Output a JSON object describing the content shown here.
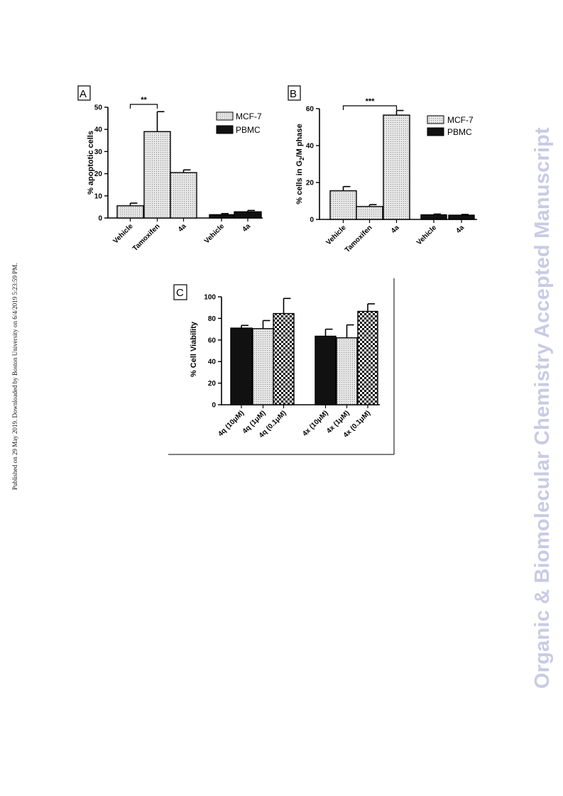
{
  "side_note": "Published on 29 May 2019. Downloaded by Boston University on 6/4/2019 5:23:59 PM.",
  "watermark": "Organic & Biomolecular Chemistry Accepted Manuscript",
  "colors": {
    "mcf7_fill": "#dcdcdc",
    "pbmc_fill": "#111111",
    "axis": "#000000",
    "watermark": "#c9cbe4"
  },
  "chart_data": [
    {
      "panel": "A",
      "type": "bar",
      "ylabel": "% apoptotic cells",
      "ylim": [
        0,
        50
      ],
      "yticks": [
        0,
        10,
        20,
        30,
        40,
        50
      ],
      "categories": [
        "Vehicle",
        "Tamoxifen",
        "4a",
        "Vehicle",
        "4a"
      ],
      "legend": [
        "MCF-7",
        "PBMC"
      ],
      "legend_position": "top-right",
      "bars": [
        {
          "category": "Vehicle",
          "series": "MCF-7",
          "value": 5.5,
          "error": 1.2,
          "fill": "dots"
        },
        {
          "category": "Tamoxifen",
          "series": "MCF-7",
          "value": 39,
          "error": 9,
          "fill": "dots"
        },
        {
          "category": "4a",
          "series": "MCF-7",
          "value": 20.5,
          "error": 1.2,
          "fill": "dots"
        },
        {
          "category": "Vehicle",
          "series": "PBMC",
          "value": 1.5,
          "error": 0.5,
          "fill": "solid"
        },
        {
          "category": "4a",
          "series": "PBMC",
          "value": 2.8,
          "error": 0.6,
          "fill": "solid"
        }
      ],
      "significance": [
        {
          "from": 0,
          "to": 1,
          "label": "**"
        }
      ]
    },
    {
      "panel": "B",
      "type": "bar",
      "ylabel_parts": [
        "% cells in G",
        "2",
        "/M phase"
      ],
      "ylim": [
        0,
        60
      ],
      "yticks": [
        0,
        20,
        40,
        60
      ],
      "categories": [
        "Vehicle",
        "Tamoxifen",
        "4a",
        "Vehicle",
        "4a"
      ],
      "legend": [
        "MCF-7",
        "PBMC"
      ],
      "legend_position": "top-right",
      "bars": [
        {
          "category": "Vehicle",
          "series": "MCF-7",
          "value": 15.5,
          "error": 2.3,
          "fill": "dots"
        },
        {
          "category": "Tamoxifen",
          "series": "MCF-7",
          "value": 7,
          "error": 1,
          "fill": "dots"
        },
        {
          "category": "4a",
          "series": "MCF-7",
          "value": 56.5,
          "error": 2.5,
          "fill": "dots"
        },
        {
          "category": "Vehicle",
          "series": "PBMC",
          "value": 2.5,
          "error": 0.4,
          "fill": "solid"
        },
        {
          "category": "4a",
          "series": "PBMC",
          "value": 2.3,
          "error": 0.4,
          "fill": "solid"
        }
      ],
      "significance": [
        {
          "from": 0,
          "to": 2,
          "label": "***"
        }
      ]
    },
    {
      "panel": "C",
      "type": "bar",
      "ylabel": "% Cell Viability",
      "ylim": [
        0,
        100
      ],
      "yticks": [
        0,
        20,
        40,
        60,
        80,
        100
      ],
      "categories": [
        "4q (10μM)",
        "4q (1μM)",
        "4q (0.1μM)",
        "4x (10μM)",
        "4x (1μM)",
        "4x (0.1μM)"
      ],
      "bars": [
        {
          "category": "4q (10μM)",
          "value": 71,
          "error": 2.5,
          "fill": "solid"
        },
        {
          "category": "4q (1μM)",
          "value": 70.5,
          "error": 7.5,
          "fill": "dots"
        },
        {
          "category": "4q (0.1μM)",
          "value": 84.5,
          "error": 14,
          "fill": "checker"
        },
        {
          "category": "4x (10μM)",
          "value": 63.5,
          "error": 6.5,
          "fill": "solid"
        },
        {
          "category": "4x (1μM)",
          "value": 62,
          "error": 12,
          "fill": "dots"
        },
        {
          "category": "4x (0.1μM)",
          "value": 86.5,
          "error": 7,
          "fill": "checker"
        }
      ]
    }
  ]
}
